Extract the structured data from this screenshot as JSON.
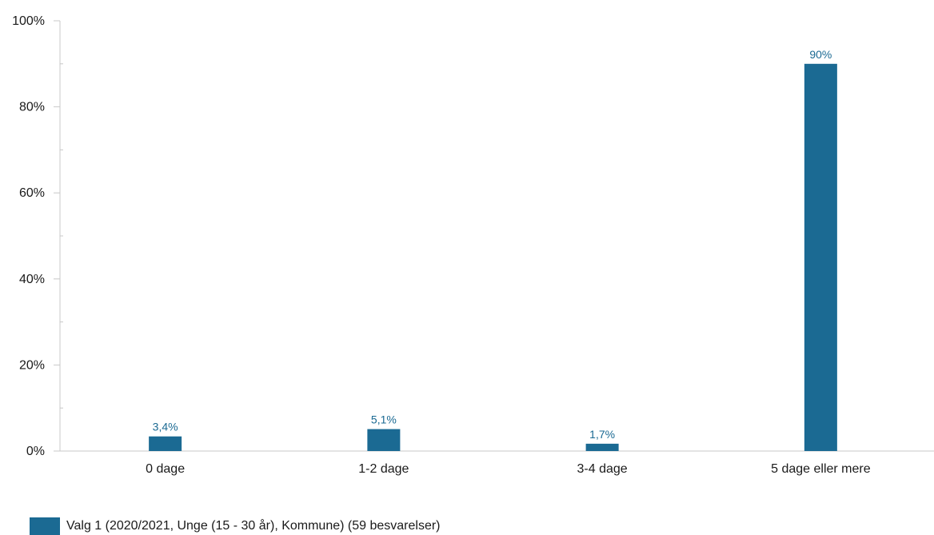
{
  "chart_data": {
    "type": "bar",
    "categories": [
      "0 dage",
      "1-2 dage",
      "3-4 dage",
      "5 dage eller mere"
    ],
    "series": [
      {
        "name": "Valg 1 (2020/2021, Unge (15 - 30 år), Kommune) (59 besvarelser)",
        "values": [
          3.4,
          5.1,
          1.7,
          90
        ],
        "data_labels": [
          "3,4%",
          "5,1%",
          "1,7%",
          "90%"
        ],
        "color": "#1b6a93"
      }
    ],
    "ylim": [
      0,
      100
    ],
    "y_ticks": [
      "0%",
      "20%",
      "40%",
      "60%",
      "80%",
      "100%"
    ],
    "y_tick_values": [
      0,
      20,
      40,
      60,
      80,
      100
    ],
    "grid": false,
    "legend_position": "bottom-left",
    "axis_color": "#c8c8c8"
  }
}
